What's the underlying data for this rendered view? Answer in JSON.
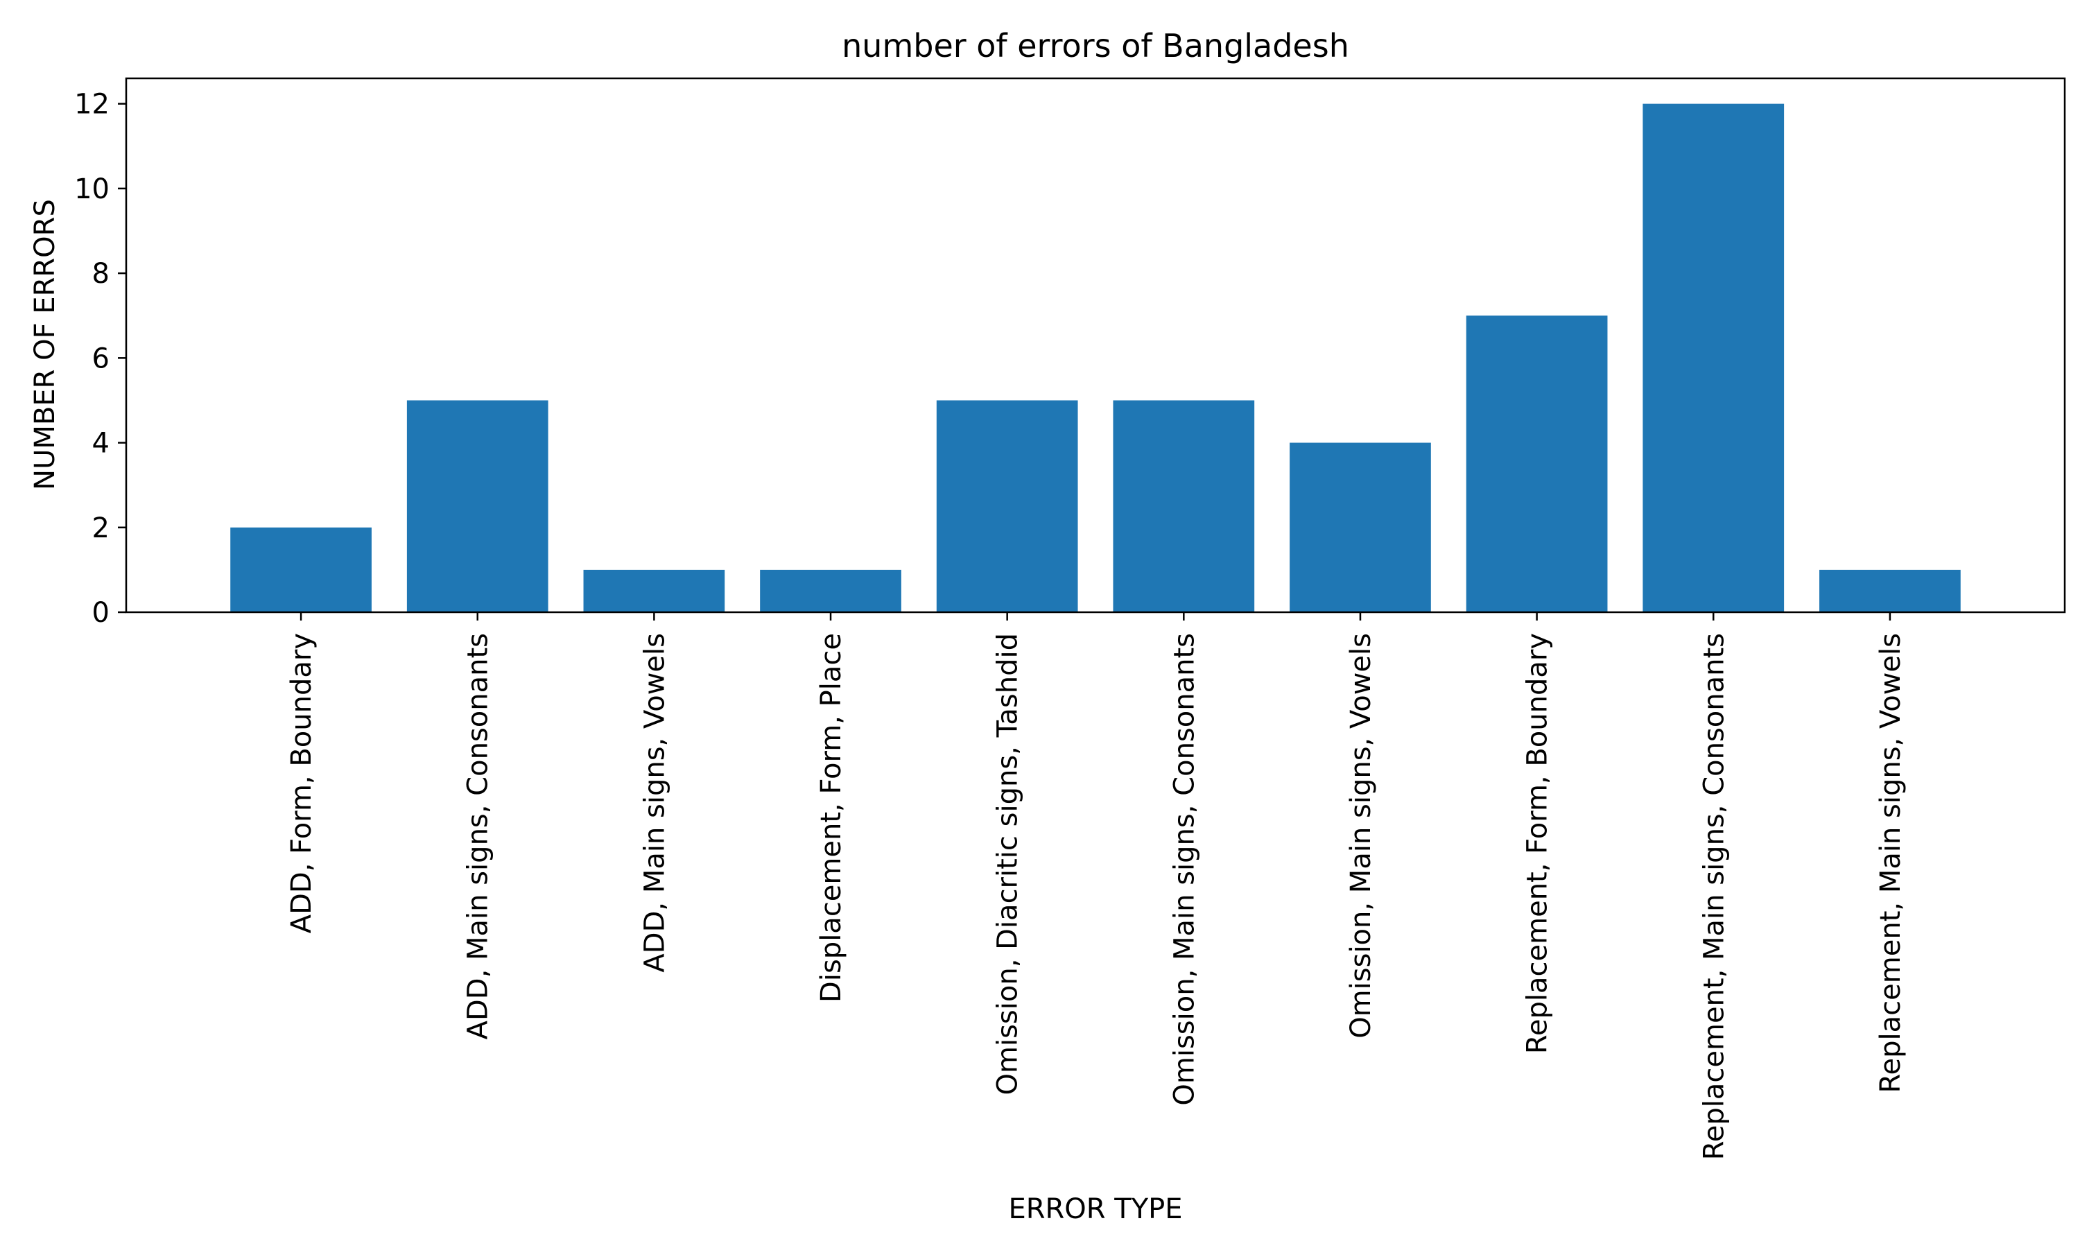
{
  "chart_data": {
    "type": "bar",
    "title": "number of errors of Bangladesh",
    "xlabel": "ERROR TYPE",
    "ylabel": "NUMBER OF ERRORS",
    "categories": [
      "ADD, Form, Boundary",
      "ADD, Main signs, Consonants",
      "ADD, Main signs, Vowels",
      "Displacement, Form, Place",
      "Omission, Diacritic signs, Tashdid",
      "Omission, Main signs, Consonants",
      "Omission, Main signs, Vowels",
      "Replacement, Form, Boundary",
      "Replacement, Main signs, Consonants",
      "Replacement, Main signs, Vowels"
    ],
    "values": [
      2,
      5,
      1,
      1,
      5,
      5,
      4,
      7,
      12,
      1
    ],
    "ylim": [
      0,
      12.6
    ],
    "yticks": [
      0,
      2,
      4,
      6,
      8,
      10,
      12
    ],
    "ytick_labels": [
      "0",
      "2",
      "4",
      "6",
      "8",
      "10",
      "12"
    ],
    "bar_color": "#1f77b4",
    "grid": false,
    "legend": "none"
  }
}
